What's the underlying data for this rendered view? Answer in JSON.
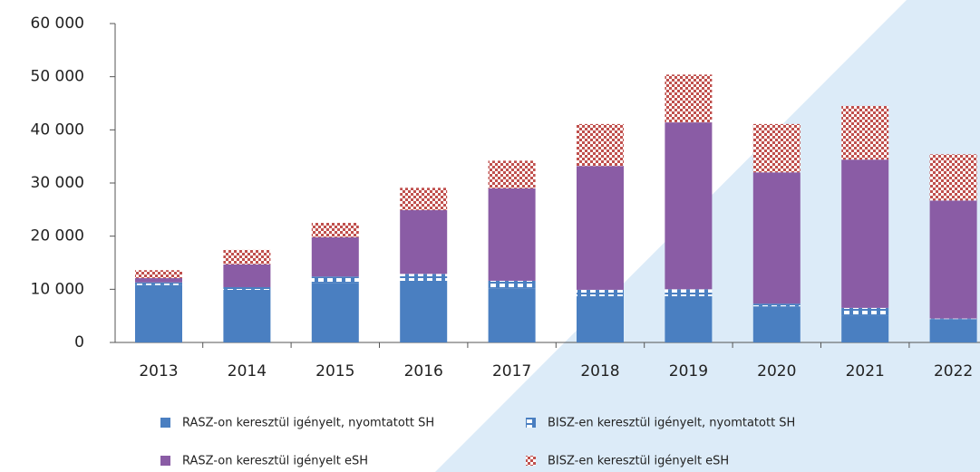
{
  "chart_data": {
    "type": "stacked_bar",
    "categories": [
      "2013",
      "2014",
      "2015",
      "2016",
      "2017",
      "2018",
      "2019",
      "2020",
      "2021",
      "2022"
    ],
    "series": [
      {
        "name": "RASZ-on keresztül igényelt, nyomtatott SH",
        "color": "#4a7fc1",
        "values": [
          10800,
          9900,
          11200,
          11600,
          10200,
          8700,
          8700,
          6800,
          5100,
          4400
        ]
      },
      {
        "name": "BISZ-en keresztül igényelt, nyomtatott SH",
        "color": "#4a7fc1",
        "fill_pattern": "dash",
        "values": [
          500,
          500,
          1200,
          1300,
          1400,
          1200,
          1300,
          500,
          1400,
          100
        ]
      },
      {
        "name": "RASZ-on keresztül igényelt eSH",
        "color": "#8a5ca5",
        "values": [
          800,
          4300,
          7400,
          12000,
          17400,
          23300,
          31400,
          24700,
          27900,
          22200
        ]
      },
      {
        "name": "BISZ-en keresztül igényelt eSH",
        "color": "#c0504d",
        "fill_pattern": "check",
        "values": [
          1500,
          2700,
          2700,
          4200,
          5200,
          7900,
          9000,
          9100,
          10100,
          8700
        ]
      }
    ],
    "ylim": [
      0,
      60000
    ],
    "yticks": [
      0,
      {
        "value": 10000,
        "label": "10 000"
      },
      {
        "value": 20000,
        "label": "20 000"
      },
      {
        "value": 30000,
        "label": "30 000"
      },
      {
        "value": 40000,
        "label": "40 000"
      },
      {
        "value": 50000,
        "label": "50 000"
      },
      {
        "value": 60000,
        "label": "60 000"
      }
    ]
  }
}
